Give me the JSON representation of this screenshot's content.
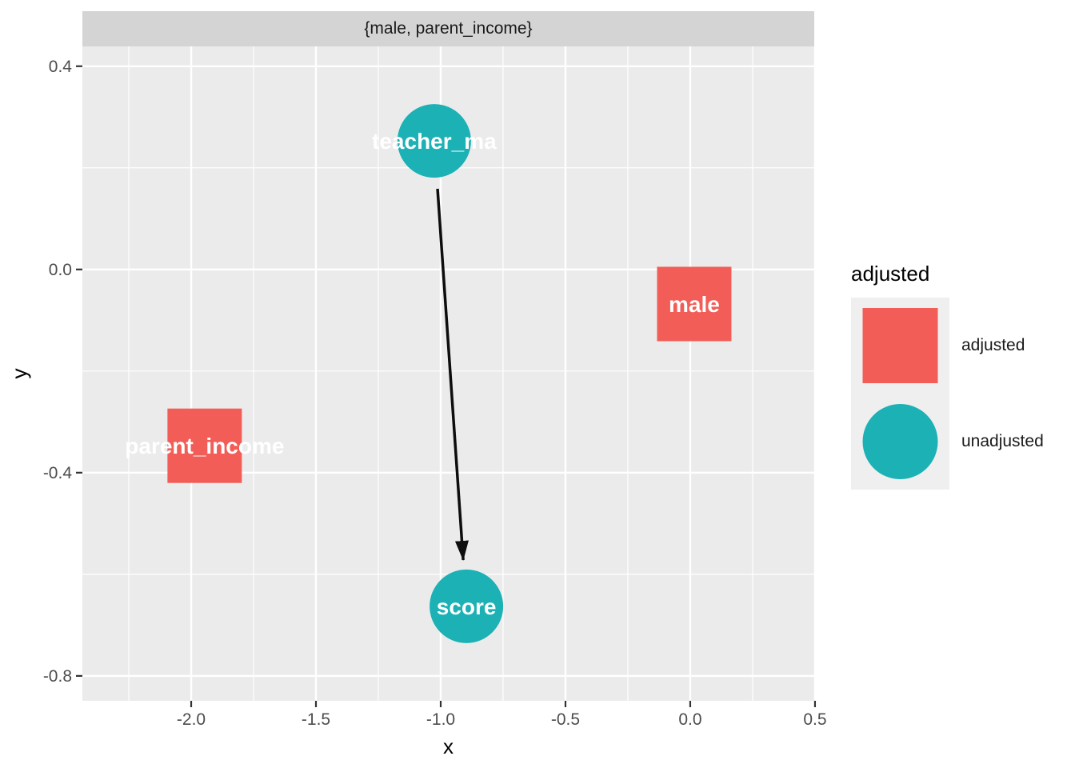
{
  "facet_label": "{male, parent_income}",
  "legend": {
    "title": "adjusted",
    "items": [
      {
        "label": "adjusted",
        "shape": "square",
        "status": "adjusted"
      },
      {
        "label": "unadjusted",
        "shape": "circle",
        "status": "unadjusted"
      }
    ]
  },
  "colors": {
    "adjusted": "#F25D57",
    "unadjusted": "#1CB1B5",
    "panel_bg": "#EBEBEB",
    "strip_bg": "#D4D4D4",
    "key_bg": "#EFEFEF",
    "grid": "#FFFFFF",
    "tick_text": "#4D4D4D",
    "tick_mark": "#333333",
    "arrow": "#0E0E0E",
    "node_label": "#FFFFFF"
  },
  "chart_data": {
    "type": "scatter",
    "subtype": "dag",
    "facet": "{male, parent_income}",
    "xlabel": "x",
    "ylabel": "y",
    "x_range": [
      -2.436,
      0.497
    ],
    "y_range": [
      -0.849,
      0.439
    ],
    "grid": "on",
    "legend_position": "right",
    "x_ticks": [
      {
        "v": -2.0,
        "label": "-2.0"
      },
      {
        "v": -1.5,
        "label": "-1.5"
      },
      {
        "v": -1.0,
        "label": "-1.0"
      },
      {
        "v": -0.5,
        "label": "-0.5"
      },
      {
        "v": 0.0,
        "label": "0.0"
      },
      {
        "v": 0.5,
        "label": "0.5"
      }
    ],
    "y_ticks": [
      {
        "v": 0.4,
        "label": "0.4"
      },
      {
        "v": 0.0,
        "label": "0.0"
      },
      {
        "v": -0.4,
        "label": "-0.4"
      },
      {
        "v": -0.8,
        "label": "-0.8"
      }
    ],
    "x_minor": [
      -2.25,
      -1.75,
      -1.25,
      -0.75,
      -0.25,
      0.25
    ],
    "y_minor": [
      0.2,
      -0.2,
      -0.6
    ],
    "nodes": [
      {
        "name": "teacher_ma",
        "x": -1.026,
        "y": 0.253,
        "shape": "circle",
        "status": "unadjusted"
      },
      {
        "name": "male",
        "x": 0.016,
        "y": -0.068,
        "shape": "square",
        "status": "adjusted"
      },
      {
        "name": "parent_income",
        "x": -1.946,
        "y": -0.347,
        "shape": "square",
        "status": "adjusted"
      },
      {
        "name": "score",
        "x": -0.897,
        "y": -0.663,
        "shape": "circle",
        "status": "unadjusted"
      }
    ],
    "edges": [
      {
        "from": "teacher_ma",
        "to": "score"
      }
    ]
  }
}
